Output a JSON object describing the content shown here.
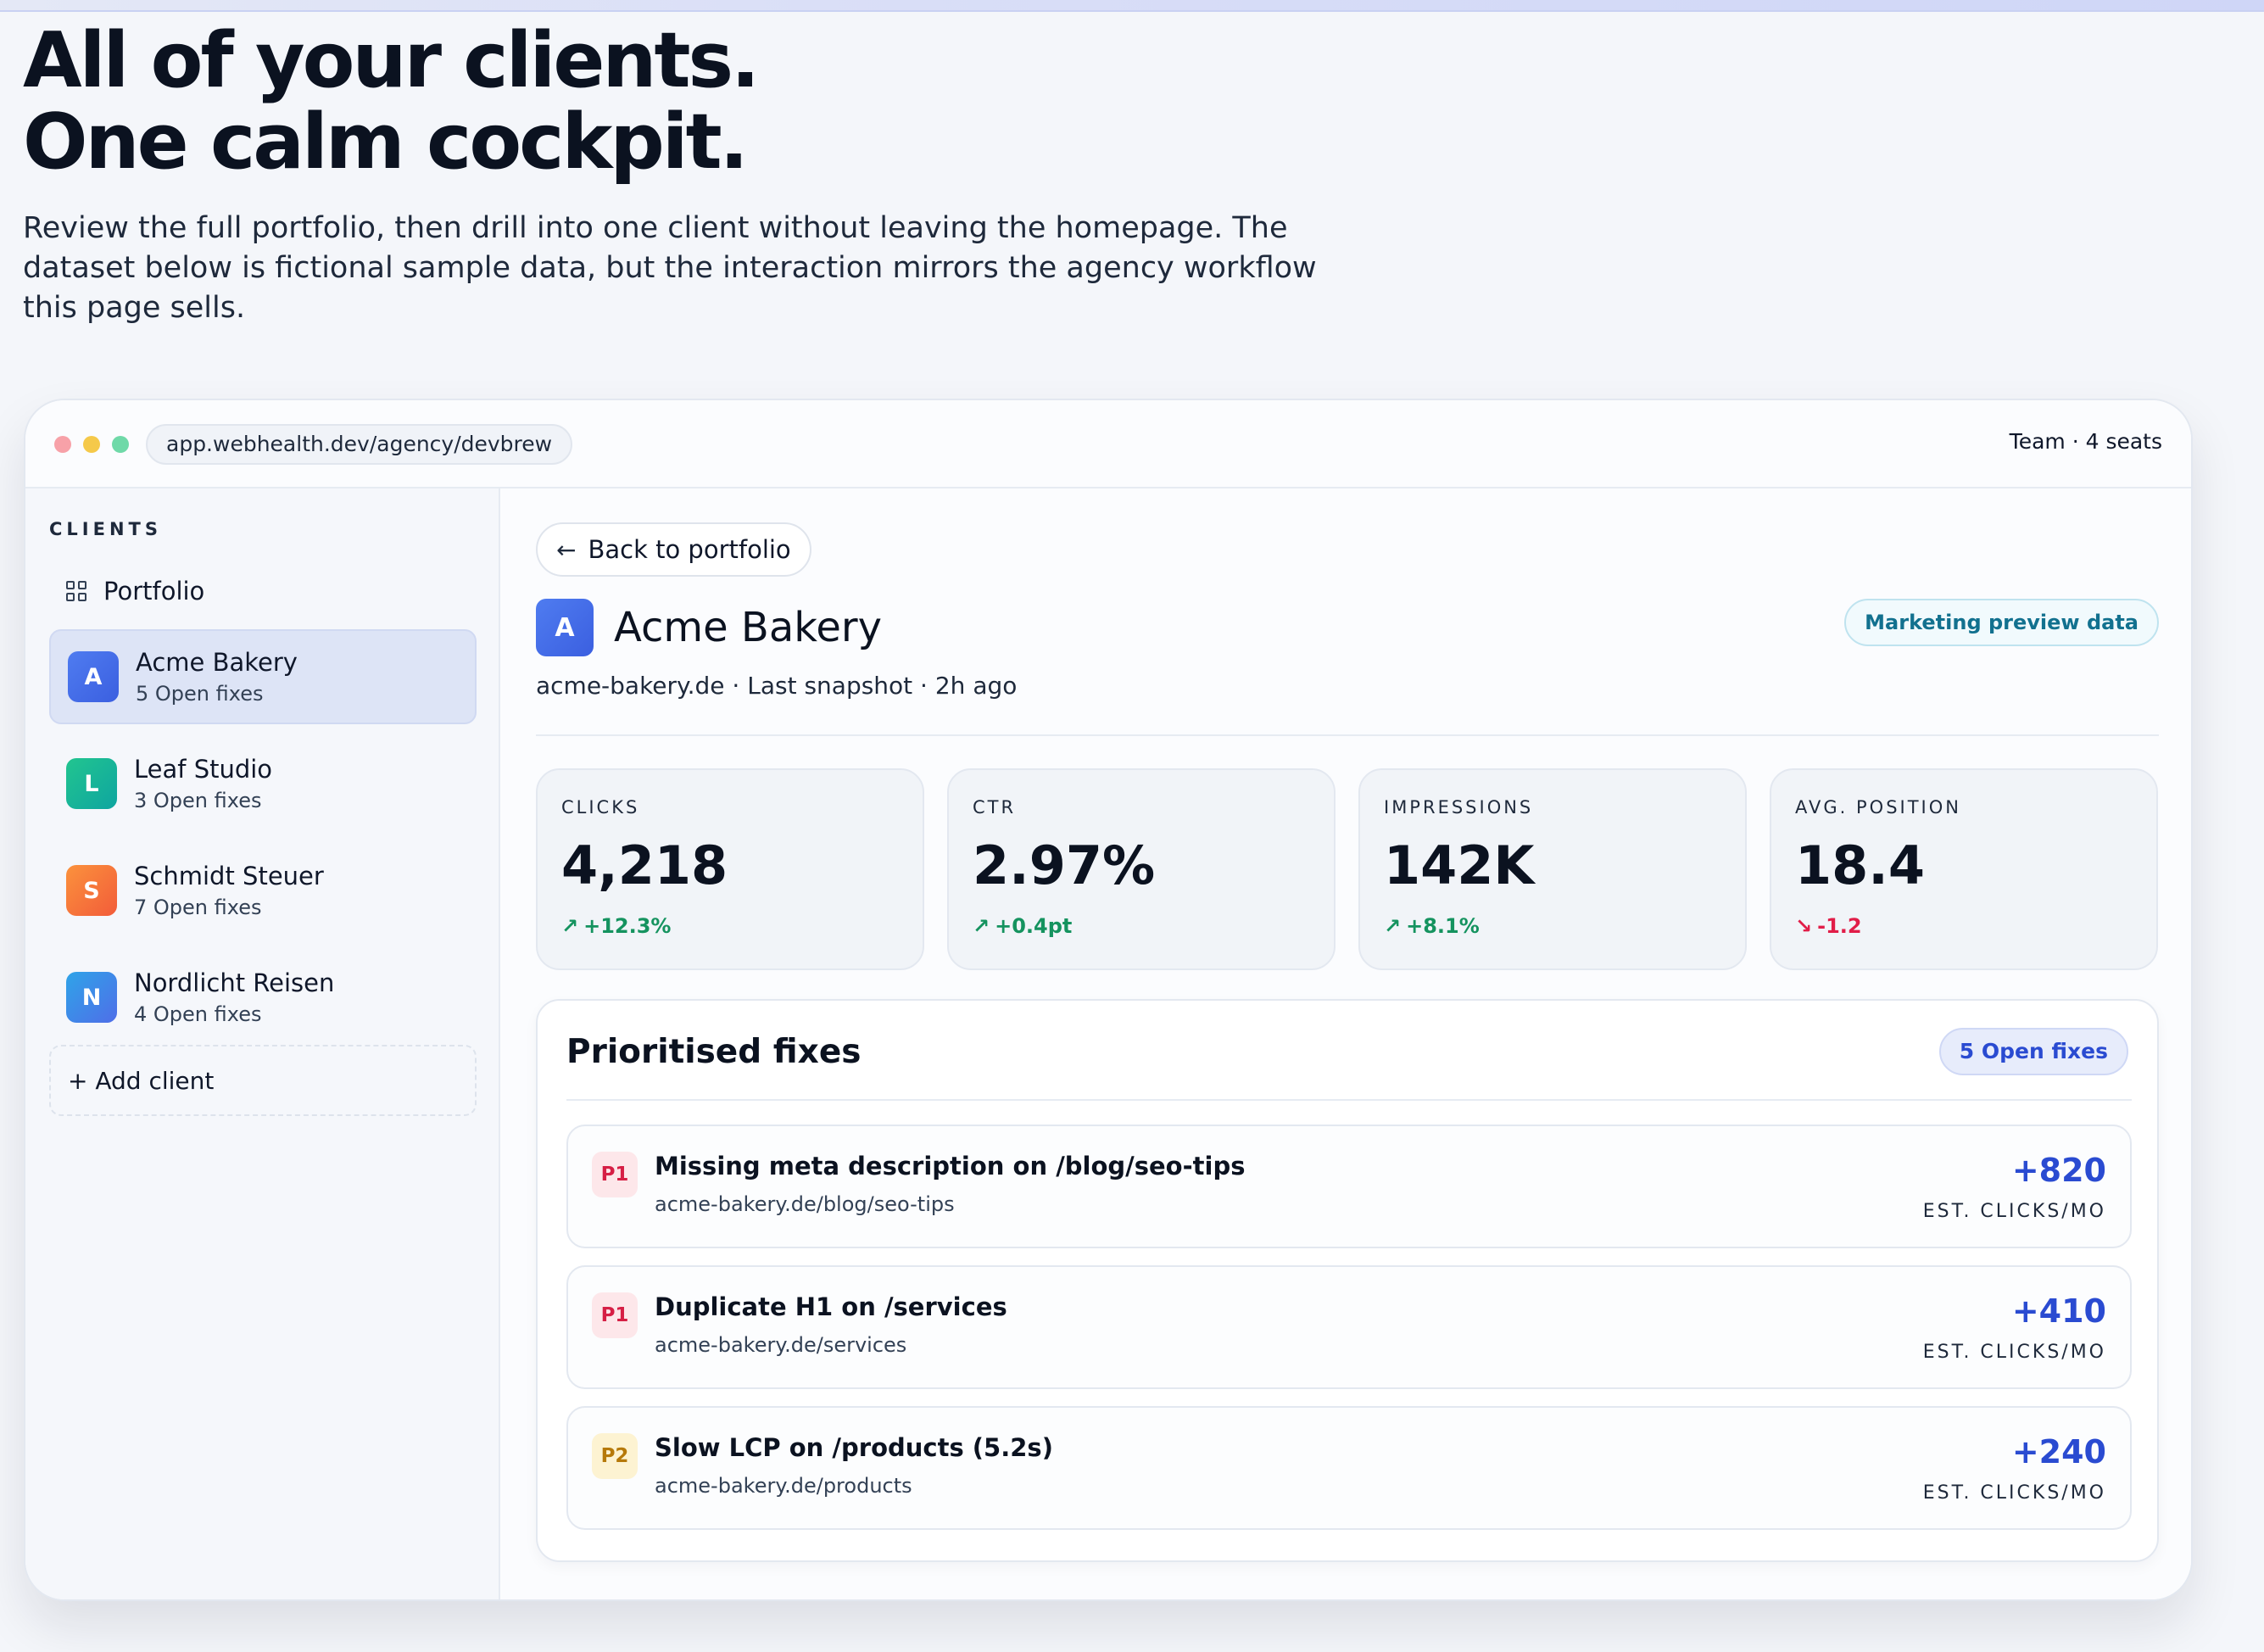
{
  "hero": {
    "title_line1": "All of your clients.",
    "title_line2": "One calm cockpit.",
    "description": "Review the full portfolio, then drill into one client without leaving the homepage. The dataset below is fictional sample data, but the interaction mirrors the agency workflow this page sells."
  },
  "window": {
    "url": "app.webhealth.dev/agency/devbrew",
    "team": "Team · 4 seats"
  },
  "sidebar": {
    "label": "CLIENTS",
    "portfolio_label": "Portfolio",
    "clients": [
      {
        "initial": "A",
        "name": "Acme Bakery",
        "sub": "5 Open fixes",
        "color": "#3b6fe6",
        "active": true
      },
      {
        "initial": "L",
        "name": "Leaf Studio",
        "sub": "3 Open fixes",
        "color": "#14b8a6",
        "active": false
      },
      {
        "initial": "S",
        "name": "Schmidt Steuer",
        "sub": "7 Open fixes",
        "color": "#f97316",
        "active": false
      },
      {
        "initial": "N",
        "name": "Nordlicht Reisen",
        "sub": "4 Open fixes",
        "color": "#2f80ed",
        "active": false
      }
    ],
    "add_client": "+ Add client"
  },
  "main": {
    "back_label": "Back to portfolio",
    "client_initial": "A",
    "client_name": "Acme Bakery",
    "client_meta": "acme-bakery.de · Last snapshot · 2h ago",
    "preview_badge": "Marketing preview data",
    "metrics": [
      {
        "label": "CLICKS",
        "value": "4,218",
        "delta": "+12.3%",
        "trend": "up"
      },
      {
        "label": "CTR",
        "value": "2.97%",
        "delta": "+0.4pt",
        "trend": "up"
      },
      {
        "label": "IMPRESSIONS",
        "value": "142K",
        "delta": "+8.1%",
        "trend": "up"
      },
      {
        "label": "AVG. POSITION",
        "value": "18.4",
        "delta": "-1.2",
        "trend": "down"
      }
    ],
    "fixes": {
      "title": "Prioritised fixes",
      "open_badge": "5 Open fixes",
      "items": [
        {
          "priority": "P1",
          "title": "Missing meta description on /blog/seo-tips",
          "url": "acme-bakery.de/blog/seo-tips",
          "value": "+820",
          "unit": "EST. CLICKS/MO"
        },
        {
          "priority": "P1",
          "title": "Duplicate H1 on /services",
          "url": "acme-bakery.de/services",
          "value": "+410",
          "unit": "EST. CLICKS/MO"
        },
        {
          "priority": "P2",
          "title": "Slow LCP on /products (5.2s)",
          "url": "acme-bakery.de/products",
          "value": "+240",
          "unit": "EST. CLICKS/MO"
        }
      ]
    }
  },
  "colors": {
    "accent": "#2a4bd1",
    "positive": "#15935f",
    "negative": "#e11d48"
  }
}
